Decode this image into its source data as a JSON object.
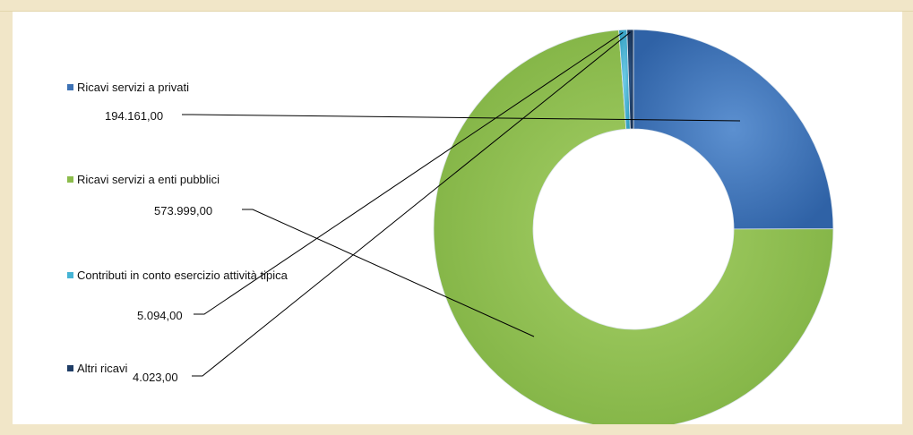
{
  "chart_data": {
    "type": "pie",
    "donut": true,
    "legend_position": "left",
    "title": "",
    "categories": [
      "Ricavi servizi a privati",
      "Ricavi servizi a enti pubblici",
      "Contributi in conto esercizio attività tipica",
      "Altri ricavi"
    ],
    "values": [
      194161.0,
      573999.0,
      5094.0,
      4023.0
    ],
    "value_labels": [
      "194.161,00",
      "573.999,00",
      "5.094,00",
      "4.023,00"
    ],
    "colors": [
      "#3d72b5",
      "#8cbc4c",
      "#45b4d5",
      "#1f3d66"
    ]
  }
}
